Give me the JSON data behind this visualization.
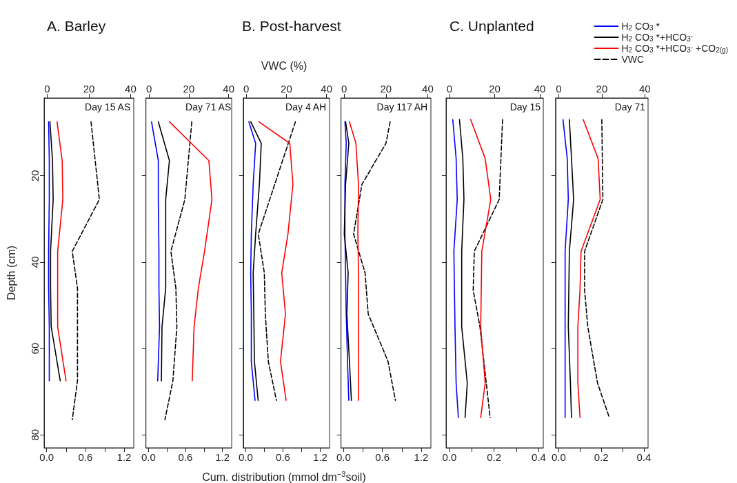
{
  "chart_data": [
    {
      "type": "line",
      "title": "A. Barley",
      "ylabel": "Depth (cm)",
      "annotations": [
        "Day 15 AS"
      ],
      "xlim": [
        -0.04,
        1.35
      ],
      "xticks": [
        {
          "value": 0,
          "label": "0.0"
        },
        {
          "value": 0.3,
          "label": null
        },
        {
          "value": 0.6,
          "label": "0.6"
        },
        {
          "value": 0.9,
          "label": null
        },
        {
          "value": 1.2,
          "label": "1.2"
        }
      ],
      "x2lim": [
        -1.5,
        41.5
      ],
      "x2ticks": [
        0,
        20,
        40
      ],
      "ylim": [
        83,
        2
      ],
      "yticks": [
        20,
        40,
        60,
        80
      ],
      "series": [
        {
          "color": "#0000ff",
          "x": [
            0.03,
            0.04,
            0.04,
            0.03,
            0.03,
            0.04,
            0.04
          ],
          "values": [
            7.5,
            16.5,
            25.5,
            37.5,
            46,
            55,
            67.5
          ]
        },
        {
          "color": "#000000",
          "x": [
            0.05,
            0.09,
            0.1,
            0.06,
            0.06,
            0.07,
            0.21
          ],
          "values": [
            7.5,
            16.5,
            25.5,
            37.5,
            46,
            55,
            67.5
          ]
        },
        {
          "color": "#ff0000",
          "x": [
            0.16,
            0.24,
            0.25,
            0.17,
            0.17,
            0.17,
            0.3
          ],
          "values": [
            7.5,
            16.5,
            25.5,
            37.5,
            46,
            55,
            67.5
          ]
        },
        {
          "color": "#000000",
          "axis": "x2",
          "line_style": "dashed",
          "x": [
            21,
            25,
            12,
            14.5,
            14.5,
            14.5,
            12
          ],
          "values": [
            7.5,
            25.5,
            37.5,
            46,
            55,
            67.5,
            76.5
          ]
        }
      ]
    },
    {
      "type": "line",
      "annotations": [
        "Day 71 AS"
      ],
      "tick_labels": "x",
      "xlim": [
        -0.04,
        1.35
      ],
      "xticks": [
        {
          "value": 0,
          "label": "0.0"
        },
        {
          "value": 0.3,
          "label": null
        },
        {
          "value": 0.6,
          "label": "0.6"
        },
        {
          "value": 0.9,
          "label": null
        },
        {
          "value": 1.2,
          "label": "1.2"
        }
      ],
      "x2lim": [
        -1.5,
        41.5
      ],
      "x2ticks": [
        0,
        20,
        40
      ],
      "ylim": [
        83,
        2
      ],
      "yticks": [
        20,
        40,
        60,
        80
      ],
      "series": [
        {
          "color": "#0000ff",
          "x": [
            0.05,
            0.16,
            0.16,
            0.17,
            0.17,
            0.18,
            0.15
          ],
          "values": [
            7.5,
            16.5,
            25.5,
            37.5,
            46,
            55,
            67.5
          ]
        },
        {
          "color": "#000000",
          "x": [
            0.16,
            0.34,
            0.28,
            0.28,
            0.28,
            0.22,
            0.21
          ],
          "values": [
            7.5,
            16.5,
            25.5,
            37.5,
            46,
            55,
            67.5
          ]
        },
        {
          "color": "#ff0000",
          "x": [
            0.34,
            0.98,
            1.03,
            0.91,
            0.81,
            0.74,
            0.71
          ],
          "values": [
            7.5,
            16.5,
            25.5,
            37.5,
            46,
            55,
            67.5
          ]
        },
        {
          "color": "#000000",
          "axis": "x2",
          "line_style": "dashed",
          "x": [
            21.5,
            18,
            11,
            13.5,
            14,
            12,
            8
          ],
          "values": [
            7.5,
            25.5,
            37.5,
            46,
            55,
            67.5,
            76.5
          ]
        }
      ]
    },
    {
      "type": "line",
      "title": "B. Post-harvest",
      "xlabel": "Cum. distribution (mmol dm$^{−3}$soil)",
      "x2label": "VWC (%)",
      "annotations": [
        "Day 4 AH"
      ],
      "tick_labels": "x",
      "xlim": [
        -0.04,
        1.35
      ],
      "xticks": [
        {
          "value": 0,
          "label": "0.0"
        },
        {
          "value": 0.3,
          "label": null
        },
        {
          "value": 0.6,
          "label": "0.6"
        },
        {
          "value": 0.9,
          "label": null
        },
        {
          "value": 1.2,
          "label": "1.2"
        }
      ],
      "x2lim": [
        -1.5,
        41.5
      ],
      "x2ticks": [
        0,
        20,
        40
      ],
      "ylim": [
        83,
        2
      ],
      "yticks": [
        20,
        40,
        60,
        80
      ],
      "series": [
        {
          "color": "#0000ff",
          "x": [
            0.05,
            0.16,
            0.12,
            0.09,
            0.08,
            0.09,
            0.09,
            0.15
          ],
          "values": [
            7.5,
            12.5,
            22,
            33.5,
            42.5,
            52,
            63,
            72
          ]
        },
        {
          "color": "#000000",
          "x": [
            0.08,
            0.25,
            0.22,
            0.16,
            0.12,
            0.13,
            0.14,
            0.2
          ],
          "values": [
            7.5,
            12.5,
            22,
            33.5,
            42.5,
            52,
            63,
            72
          ]
        },
        {
          "color": "#ff0000",
          "x": [
            0.21,
            0.71,
            0.76,
            0.68,
            0.58,
            0.64,
            0.56,
            0.65
          ],
          "values": [
            7.5,
            12.5,
            22,
            33.5,
            42.5,
            52,
            63,
            72
          ]
        },
        {
          "color": "#000000",
          "axis": "x2",
          "line_style": "dashed",
          "x": [
            24.5,
            6,
            9,
            9.5,
            11,
            15
          ],
          "values": [
            7.5,
            33.5,
            42.5,
            52,
            63,
            72
          ]
        }
      ]
    },
    {
      "type": "line",
      "annotations": [
        "Day 117 AH"
      ],
      "tick_labels": "x",
      "xlim": [
        -0.04,
        1.35
      ],
      "xticks": [
        {
          "value": 0,
          "label": "0.0"
        },
        {
          "value": 0.3,
          "label": null
        },
        {
          "value": 0.6,
          "label": "0.6"
        },
        {
          "value": 0.9,
          "label": null
        },
        {
          "value": 1.2,
          "label": "1.2"
        }
      ],
      "x2lim": [
        -1.5,
        41.5
      ],
      "x2ticks": [
        0,
        20,
        40
      ],
      "ylim": [
        83,
        2
      ],
      "yticks": [
        20,
        40,
        60,
        80
      ],
      "series": [
        {
          "color": "#0000ff",
          "x": [
            0.02,
            0.04,
            0.02,
            0.02,
            0.03,
            0.04,
            0.06,
            0.08
          ],
          "values": [
            7.5,
            12.5,
            22,
            33.5,
            42.5,
            52,
            63,
            72
          ]
        },
        {
          "color": "#000000",
          "x": [
            0.03,
            0.08,
            0.03,
            0.01,
            0.07,
            0.05,
            0.09,
            0.12
          ],
          "values": [
            7.5,
            12.5,
            22,
            33.5,
            42.5,
            52,
            63,
            72
          ]
        },
        {
          "color": "#ff0000",
          "x": [
            0.09,
            0.19,
            0.23,
            0.22,
            0.23,
            0.23,
            0.23,
            0.23
          ],
          "values": [
            7.5,
            12.5,
            22,
            33.5,
            42.5,
            52,
            63,
            72
          ]
        },
        {
          "color": "#000000",
          "axis": "x2",
          "line_style": "dashed",
          "x": [
            22,
            20,
            8.5,
            4.5,
            10,
            11.5,
            21,
            24.5
          ],
          "values": [
            7.5,
            12.5,
            22,
            33.5,
            42.5,
            52,
            63,
            72
          ]
        }
      ]
    },
    {
      "type": "line",
      "title": "C. Unplanted",
      "annotations": [
        "Day 15"
      ],
      "tick_labels": "x",
      "xlim": [
        -0.015,
        0.42
      ],
      "xticks": [
        {
          "value": 0,
          "label": "0.0"
        },
        {
          "value": 0.1,
          "label": null
        },
        {
          "value": 0.2,
          "label": "0.2"
        },
        {
          "value": 0.3,
          "label": null
        },
        {
          "value": 0.4,
          "label": "0.4"
        }
      ],
      "x2lim": [
        -1.5,
        41.5
      ],
      "x2ticks": [
        0,
        20,
        40
      ],
      "ylim": [
        83,
        2
      ],
      "yticks": [
        20,
        40,
        60,
        80
      ],
      "series": [
        {
          "color": "#0000ff",
          "x": [
            0.015,
            0.03,
            0.035,
            0.02,
            0.025,
            0.03,
            0.04
          ],
          "values": [
            7,
            16,
            25.5,
            37.5,
            55,
            68,
            76
          ]
        },
        {
          "color": "#000000",
          "x": [
            0.045,
            0.06,
            0.065,
            0.055,
            0.055,
            0.08,
            0.07
          ],
          "values": [
            7,
            16,
            25.5,
            37.5,
            55,
            68,
            76
          ]
        },
        {
          "color": "#ff0000",
          "x": [
            0.095,
            0.16,
            0.185,
            0.145,
            0.14,
            0.16,
            0.14
          ],
          "values": [
            7,
            16,
            25.5,
            37.5,
            55,
            68,
            76
          ]
        },
        {
          "color": "#000000",
          "axis": "x2",
          "line_style": "dashed",
          "x": [
            23.5,
            22,
            11,
            10.5,
            13.5,
            18
          ],
          "values": [
            7,
            25.5,
            37.5,
            46.5,
            55,
            76
          ]
        }
      ]
    },
    {
      "type": "line",
      "annotations": [
        "Day 71"
      ],
      "tick_labels": "x",
      "legend": "top right",
      "xlim": [
        -0.015,
        0.42
      ],
      "xticks": [
        {
          "value": 0,
          "label": "0.0"
        },
        {
          "value": 0.1,
          "label": null
        },
        {
          "value": 0.2,
          "label": "0.2"
        },
        {
          "value": 0.3,
          "label": null
        },
        {
          "value": 0.4,
          "label": "0.4"
        }
      ],
      "x2lim": [
        -1.5,
        41.5
      ],
      "x2ticks": [
        0,
        20,
        40
      ],
      "ylim": [
        83,
        2
      ],
      "yticks": [
        20,
        40,
        60,
        80
      ],
      "series": [
        {
          "name": "H$_{2}$ CO$_{3}$ *",
          "color": "#0000ff",
          "x": [
            0.02,
            0.04,
            0.045,
            0.03,
            0.03,
            0.03,
            0.03
          ],
          "values": [
            7,
            16,
            25.5,
            37.5,
            55,
            68,
            76
          ]
        },
        {
          "name": "H$_{2}$ CO$_{3}$ *+HCO$_{3}$$^{-}$",
          "color": "#000000",
          "x": [
            0.05,
            0.06,
            0.07,
            0.05,
            0.045,
            0.055,
            0.06
          ],
          "values": [
            7,
            16,
            25.5,
            37.5,
            55,
            68,
            76
          ]
        },
        {
          "name": "H$_{2}$ CO$_{3}$ *+HCO$_{3}$$^{-}$ +CO$_{2(g)}$",
          "color": "#ff0000",
          "x": [
            0.115,
            0.185,
            0.195,
            0.105,
            0.1,
            0.09,
            0.09,
            0.1
          ],
          "values": [
            7,
            16,
            25.5,
            37.5,
            46.5,
            55,
            68,
            76
          ]
        },
        {
          "name": "VWC",
          "color": "#000000",
          "axis": "x2",
          "line_style": "dashed",
          "x": [
            20,
            20.5,
            12,
            12,
            13.5,
            18,
            23.5
          ],
          "values": [
            7,
            25.5,
            37.5,
            46.5,
            55,
            68,
            76
          ]
        }
      ]
    }
  ]
}
